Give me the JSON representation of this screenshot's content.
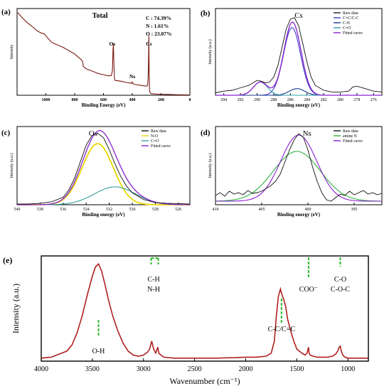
{
  "chart_data": [
    {
      "panel": "(a)",
      "type": "line",
      "title": "Total",
      "xlabel": "Binding Energy (eV)",
      "ylabel": "Intensity",
      "xlim": [
        1200,
        0
      ],
      "xticks": [
        1000,
        800,
        600,
        400,
        200,
        0
      ],
      "composition": [
        "C : 74.39%",
        "N : 1.61%",
        "O : 23.07%"
      ],
      "annotations": [
        {
          "text": "Os",
          "x": 531
        },
        {
          "text": "Ns",
          "x": 400
        },
        {
          "text": "Cs",
          "x": 285
        }
      ],
      "series": [
        {
          "color": "#7a1a12",
          "x": [
            1195,
            1160,
            1130,
            1100,
            1075,
            1060,
            1040,
            1010,
            990,
            975,
            960,
            920,
            880,
            850,
            820,
            800,
            780,
            760,
            745,
            740,
            720,
            690,
            660,
            630,
            600,
            580,
            560,
            545,
            538,
            534,
            531,
            528,
            524,
            520,
            480,
            440,
            420,
            405,
            400,
            395,
            380,
            340,
            300,
            294,
            290,
            287,
            285,
            283,
            280,
            276,
            270,
            240,
            200,
            160,
            120,
            80,
            40,
            5
          ],
          "y": [
            1.0,
            0.93,
            0.88,
            0.84,
            0.8,
            0.78,
            0.76,
            0.74,
            0.7,
            0.67,
            0.64,
            0.61,
            0.58,
            0.55,
            0.52,
            0.5,
            0.47,
            0.44,
            0.41,
            0.35,
            0.32,
            0.3,
            0.28,
            0.26,
            0.25,
            0.24,
            0.235,
            0.24,
            0.3,
            0.55,
            0.62,
            0.4,
            0.2,
            0.18,
            0.17,
            0.155,
            0.15,
            0.145,
            0.16,
            0.14,
            0.13,
            0.12,
            0.11,
            0.12,
            0.2,
            0.45,
            0.72,
            0.3,
            0.06,
            0.03,
            0.02,
            0.015,
            0.012,
            0.01,
            0.008,
            0.006,
            0.005,
            0.004
          ]
        }
      ]
    },
    {
      "panel": "(b)",
      "type": "line",
      "title": "Cs",
      "xlabel": "Binding energy (eV)",
      "ylabel": "Intensity (a.u.)",
      "xlim": [
        295,
        275
      ],
      "xticks": [
        294,
        292,
        290,
        288,
        286,
        284,
        282,
        280,
        278,
        276
      ],
      "legend": [
        "Raw data",
        "C=C/C-C",
        "C-N",
        "C=O",
        "Fitted curve"
      ],
      "legend_colors": [
        "#222222",
        "#3d3dc8",
        "#1a3a8c",
        "#2fa0b0",
        "#8a20d0"
      ],
      "peaks": [
        {
          "name": "C=C/C-C",
          "center": 285.8,
          "height": 0.82,
          "fwhm": 2.4,
          "color": "#3d3dc8"
        },
        {
          "name": "C-N",
          "center": 285.2,
          "height": 0.08,
          "fwhm": 2.2,
          "color": "#1a3a8c"
        },
        {
          "name": "C=O",
          "center": 289.6,
          "height": 0.16,
          "fwhm": 2.0,
          "color": "#2fa0b0"
        }
      ],
      "raw_data": {
        "x": [
          295,
          294,
          293,
          292,
          291,
          290.5,
          290,
          289.5,
          289,
          288.5,
          288,
          287.5,
          287,
          286.5,
          286,
          285.5,
          285,
          284.5,
          284,
          283.5,
          283,
          282,
          281,
          280,
          279,
          278.5,
          278,
          277,
          276,
          275
        ],
        "y": [
          0.03,
          0.05,
          0.06,
          0.09,
          0.12,
          0.15,
          0.18,
          0.17,
          0.15,
          0.16,
          0.22,
          0.36,
          0.58,
          0.8,
          0.92,
          0.94,
          0.84,
          0.62,
          0.4,
          0.22,
          0.12,
          0.06,
          0.04,
          0.04,
          0.05,
          0.1,
          0.11,
          0.08,
          0.05,
          0.04
        ]
      }
    },
    {
      "panel": "(c)",
      "type": "line",
      "title": "Os",
      "xlabel": "Binding energy (eV)",
      "ylabel": "Intensity (a.u.)",
      "xlim": [
        540,
        525
      ],
      "xticks": [
        540,
        538,
        536,
        534,
        532,
        530,
        528,
        526
      ],
      "legend": [
        "Raw data",
        "N-O",
        "C=O",
        "Fitted curve"
      ],
      "legend_colors": [
        "#111111",
        "#e8d800",
        "#3aa0a0",
        "#8a20d0"
      ],
      "peaks": [
        {
          "name": "N-O",
          "center": 533.0,
          "height": 0.82,
          "fwhm": 3.2,
          "color": "#e8d800"
        },
        {
          "name": "C=O",
          "center": 531.5,
          "height": 0.24,
          "fwhm": 4.2,
          "color": "#3aa0a0"
        }
      ],
      "raw_data": {
        "x": [
          540,
          539,
          538,
          537,
          536,
          535.5,
          535,
          534.5,
          534,
          533.5,
          533,
          532.5,
          532,
          531.5,
          531,
          530.5,
          530,
          529,
          528,
          527,
          526,
          525
        ],
        "y": [
          0.01,
          0.01,
          0.02,
          0.04,
          0.1,
          0.2,
          0.36,
          0.58,
          0.8,
          0.93,
          0.96,
          0.9,
          0.74,
          0.55,
          0.38,
          0.25,
          0.16,
          0.07,
          0.03,
          0.02,
          0.015,
          0.01
        ]
      }
    },
    {
      "panel": "(d)",
      "type": "line",
      "title": "Ns",
      "xlabel": "Binding energy (eV)",
      "ylabel": "Intensity (a.u.)",
      "xlim": [
        410,
        392
      ],
      "xticks": [
        410,
        405,
        400,
        395
      ],
      "legend": [
        "Raw data",
        "amine N",
        "Fitted curve"
      ],
      "legend_colors": [
        "#111111",
        "#2fb040",
        "#8a20d0"
      ],
      "peaks": [
        {
          "name": "amine N",
          "center": 401.2,
          "height": 0.7,
          "fwhm": 6.0,
          "color": "#2fb040"
        },
        {
          "name": "Fitted curve",
          "center": 401.0,
          "height": 0.93,
          "fwhm": 4.6,
          "color": "#8a20d0"
        }
      ],
      "raw_data": {
        "x": [
          410,
          409.5,
          409,
          408.5,
          408,
          407.5,
          407,
          406.5,
          406,
          405.5,
          405,
          404.5,
          404,
          403.5,
          403,
          402.5,
          402,
          401.5,
          401,
          400.5,
          400,
          399.5,
          399,
          398.5,
          398,
          397.5,
          397,
          396.5,
          396,
          395.5,
          395,
          394.5,
          394,
          393.5,
          393,
          392.5,
          392
        ],
        "y": [
          0.08,
          0.12,
          0.07,
          0.14,
          0.1,
          0.12,
          0.09,
          0.15,
          0.11,
          0.12,
          0.14,
          0.18,
          0.22,
          0.28,
          0.38,
          0.55,
          0.72,
          0.86,
          0.95,
          0.9,
          0.72,
          0.48,
          0.28,
          0.12,
          0.02,
          0.0,
          0.05,
          0.1,
          0.08,
          0.14,
          0.09,
          0.12,
          0.15,
          0.1,
          0.12,
          0.09,
          0.11
        ]
      }
    },
    {
      "panel": "(e)",
      "type": "line",
      "xlabel": "Wavenumber (cm⁻¹)",
      "ylabel": "Intensity (a.u.)",
      "xlim": [
        4000,
        800
      ],
      "xticks": [
        4000,
        3500,
        3000,
        2500,
        2000,
        1500,
        1000
      ],
      "annotations": [
        {
          "text": "O-H",
          "x": 3440
        },
        {
          "text": "C-H",
          "x": 2900
        },
        {
          "text": "N-H",
          "x": 2900
        },
        {
          "text": "C-C/C=C",
          "x": 1650
        },
        {
          "text": "COO⁻",
          "x": 1385
        },
        {
          "text": "C-O",
          "x": 1075
        },
        {
          "text": "C-O-C",
          "x": 1075
        }
      ],
      "series": [
        {
          "color": "#b02020",
          "x": [
            4000,
            3950,
            3900,
            3850,
            3800,
            3750,
            3700,
            3650,
            3600,
            3550,
            3500,
            3470,
            3440,
            3410,
            3380,
            3340,
            3300,
            3250,
            3200,
            3150,
            3100,
            3050,
            3000,
            2960,
            2940,
            2920,
            2900,
            2880,
            2860,
            2850,
            2830,
            2800,
            2700,
            2500,
            2300,
            2100,
            2000,
            1900,
            1800,
            1750,
            1720,
            1700,
            1680,
            1660,
            1650,
            1630,
            1610,
            1590,
            1560,
            1530,
            1500,
            1450,
            1420,
            1400,
            1390,
            1385,
            1380,
            1370,
            1340,
            1300,
            1250,
            1200,
            1150,
            1120,
            1100,
            1085,
            1075,
            1065,
            1050,
            1030,
            1000,
            950,
            900,
            850,
            800
          ],
          "y": [
            0.03,
            0.035,
            0.04,
            0.06,
            0.08,
            0.1,
            0.16,
            0.28,
            0.45,
            0.66,
            0.85,
            0.94,
            0.97,
            0.9,
            0.78,
            0.6,
            0.45,
            0.3,
            0.18,
            0.1,
            0.06,
            0.05,
            0.06,
            0.09,
            0.12,
            0.2,
            0.12,
            0.08,
            0.14,
            0.08,
            0.06,
            0.04,
            0.03,
            0.03,
            0.03,
            0.035,
            0.04,
            0.04,
            0.05,
            0.08,
            0.2,
            0.45,
            0.65,
            0.72,
            0.68,
            0.62,
            0.55,
            0.42,
            0.3,
            0.2,
            0.12,
            0.08,
            0.06,
            0.08,
            0.12,
            0.14,
            0.08,
            0.06,
            0.05,
            0.04,
            0.04,
            0.04,
            0.05,
            0.07,
            0.1,
            0.14,
            0.15,
            0.1,
            0.06,
            0.04,
            0.03,
            0.03,
            0.03,
            0.03,
            0.03
          ]
        }
      ]
    }
  ]
}
